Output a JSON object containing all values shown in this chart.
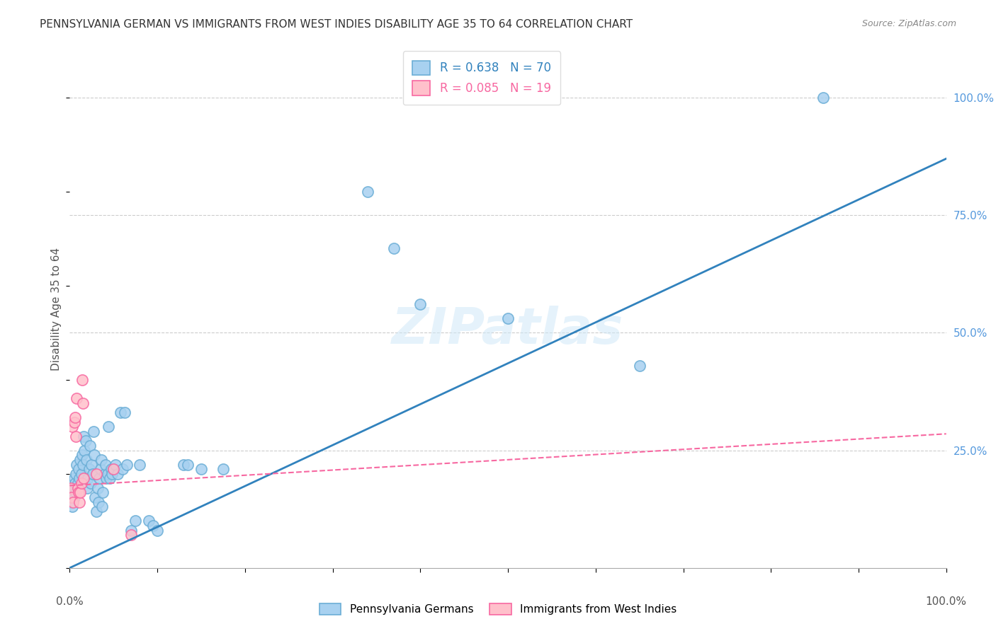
{
  "title": "PENNSYLVANIA GERMAN VS IMMIGRANTS FROM WEST INDIES DISABILITY AGE 35 TO 64 CORRELATION CHART",
  "source": "Source: ZipAtlas.com",
  "ylabel": "Disability Age 35 to 64",
  "ylabel_right_ticks": [
    "100.0%",
    "75.0%",
    "50.0%",
    "25.0%"
  ],
  "ylabel_right_vals": [
    1.0,
    0.75,
    0.5,
    0.25
  ],
  "legend_blue_R": "R = 0.638",
  "legend_blue_N": "N = 70",
  "legend_pink_R": "R = 0.085",
  "legend_pink_N": "N = 19",
  "watermark": "ZIPatlas",
  "blue_scatter": [
    [
      0.001,
      0.14
    ],
    [
      0.002,
      0.16
    ],
    [
      0.003,
      0.13
    ],
    [
      0.004,
      0.17
    ],
    [
      0.005,
      0.15
    ],
    [
      0.005,
      0.19
    ],
    [
      0.006,
      0.18
    ],
    [
      0.007,
      0.2
    ],
    [
      0.007,
      0.16
    ],
    [
      0.008,
      0.22
    ],
    [
      0.009,
      0.18
    ],
    [
      0.01,
      0.21
    ],
    [
      0.011,
      0.19
    ],
    [
      0.012,
      0.23
    ],
    [
      0.013,
      0.2
    ],
    [
      0.014,
      0.24
    ],
    [
      0.015,
      0.22
    ],
    [
      0.016,
      0.28
    ],
    [
      0.017,
      0.25
    ],
    [
      0.018,
      0.27
    ],
    [
      0.019,
      0.23
    ],
    [
      0.02,
      0.17
    ],
    [
      0.021,
      0.19
    ],
    [
      0.022,
      0.21
    ],
    [
      0.023,
      0.26
    ],
    [
      0.024,
      0.18
    ],
    [
      0.025,
      0.22
    ],
    [
      0.026,
      0.2
    ],
    [
      0.027,
      0.29
    ],
    [
      0.028,
      0.24
    ],
    [
      0.029,
      0.15
    ],
    [
      0.03,
      0.12
    ],
    [
      0.032,
      0.17
    ],
    [
      0.033,
      0.14
    ],
    [
      0.034,
      0.19
    ],
    [
      0.035,
      0.21
    ],
    [
      0.036,
      0.23
    ],
    [
      0.037,
      0.13
    ],
    [
      0.038,
      0.16
    ],
    [
      0.04,
      0.2
    ],
    [
      0.041,
      0.22
    ],
    [
      0.042,
      0.19
    ],
    [
      0.043,
      0.2
    ],
    [
      0.044,
      0.3
    ],
    [
      0.046,
      0.19
    ],
    [
      0.047,
      0.21
    ],
    [
      0.048,
      0.2
    ],
    [
      0.05,
      0.21
    ],
    [
      0.052,
      0.22
    ],
    [
      0.055,
      0.2
    ],
    [
      0.058,
      0.33
    ],
    [
      0.06,
      0.21
    ],
    [
      0.063,
      0.33
    ],
    [
      0.065,
      0.22
    ],
    [
      0.07,
      0.08
    ],
    [
      0.075,
      0.1
    ],
    [
      0.08,
      0.22
    ],
    [
      0.09,
      0.1
    ],
    [
      0.095,
      0.09
    ],
    [
      0.1,
      0.08
    ],
    [
      0.13,
      0.22
    ],
    [
      0.135,
      0.22
    ],
    [
      0.15,
      0.21
    ],
    [
      0.175,
      0.21
    ],
    [
      0.34,
      0.8
    ],
    [
      0.37,
      0.68
    ],
    [
      0.4,
      0.56
    ],
    [
      0.65,
      0.43
    ],
    [
      0.86,
      1.0
    ],
    [
      0.5,
      0.53
    ]
  ],
  "pink_scatter": [
    [
      0.001,
      0.17
    ],
    [
      0.002,
      0.15
    ],
    [
      0.003,
      0.3
    ],
    [
      0.004,
      0.14
    ],
    [
      0.005,
      0.31
    ],
    [
      0.006,
      0.32
    ],
    [
      0.007,
      0.28
    ],
    [
      0.008,
      0.36
    ],
    [
      0.009,
      0.17
    ],
    [
      0.01,
      0.16
    ],
    [
      0.011,
      0.14
    ],
    [
      0.012,
      0.16
    ],
    [
      0.013,
      0.18
    ],
    [
      0.014,
      0.4
    ],
    [
      0.015,
      0.35
    ],
    [
      0.016,
      0.19
    ],
    [
      0.03,
      0.2
    ],
    [
      0.05,
      0.21
    ],
    [
      0.07,
      0.07
    ]
  ],
  "blue_line": [
    [
      0.0,
      0.0
    ],
    [
      1.0,
      0.87
    ]
  ],
  "pink_line": [
    [
      0.0,
      0.175
    ],
    [
      1.0,
      0.285
    ]
  ],
  "xlim": [
    0.0,
    1.0
  ],
  "ylim": [
    0.0,
    1.1
  ],
  "background_color": "#ffffff",
  "blue_face": "#a8d1f0",
  "blue_edge": "#6baed6",
  "blue_line_color": "#3182bd",
  "pink_face": "#ffc0cb",
  "pink_edge": "#f768a1",
  "pink_line_color": "#f768a1",
  "grid_color": "#cccccc",
  "title_color": "#333333",
  "source_color": "#888888",
  "ylabel_color": "#555555",
  "right_tick_color": "#5599dd",
  "watermark_color": "#d0e8f8",
  "legend_blue_text_color": "#3182bd",
  "legend_pink_text_color": "#f768a1"
}
